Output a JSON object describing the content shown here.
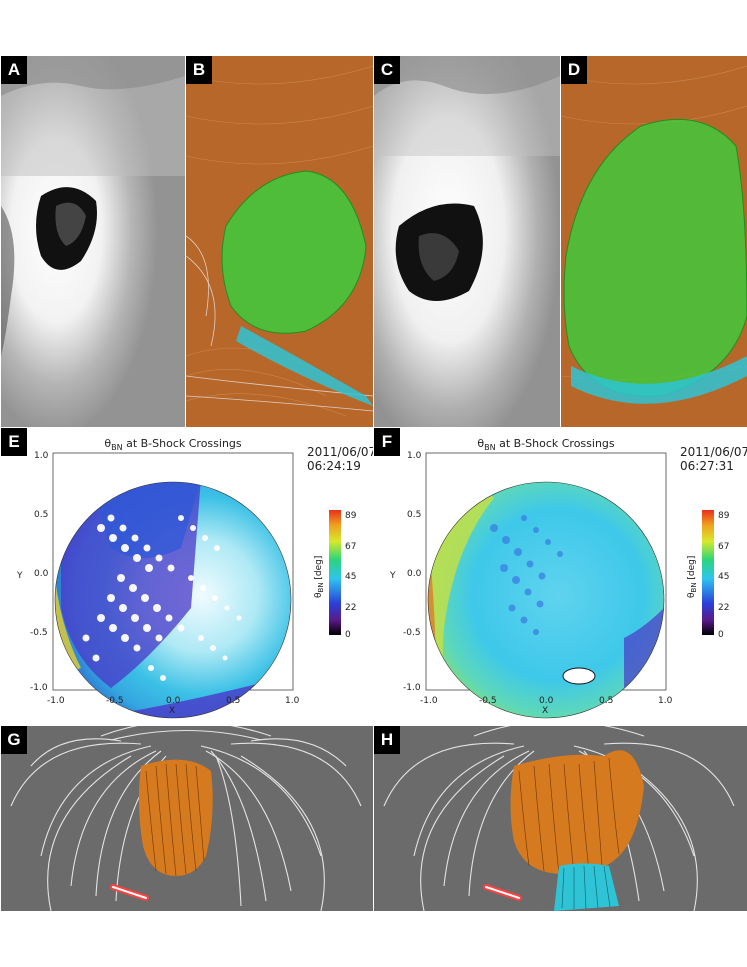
{
  "panels": {
    "A": {
      "label": "A"
    },
    "B": {
      "label": "B"
    },
    "C": {
      "label": "C"
    },
    "D": {
      "label": "D"
    },
    "E": {
      "label": "E",
      "title": "θ",
      "title_sub": "BN",
      "title_rest": " at B-Shock Crossings",
      "date": "2011/06/07",
      "time": "06:24:19"
    },
    "F": {
      "label": "F",
      "title": "θ",
      "title_sub": "BN",
      "title_rest": " at B-Shock Crossings",
      "date": "2011/06/07",
      "time": "06:27:31"
    },
    "G": {
      "label": "G"
    },
    "H": {
      "label": "H"
    }
  },
  "axes": {
    "xlabel": "X",
    "ylabel": "Y",
    "xticks": [
      "-1.0",
      "-0.5",
      "0.0",
      "0.5",
      "1.0"
    ],
    "yticks": [
      "1.0",
      "0.5",
      "0.0",
      "-0.5",
      "-1.0"
    ]
  },
  "colorbar": {
    "label": "θ",
    "label_sub": "BN",
    "label_rest": " [deg]",
    "ticks": [
      "89",
      "67",
      "45",
      "22",
      "0"
    ]
  },
  "colors": {
    "aia_bg": "#9a9a9a",
    "model_bg": "#b8672a",
    "shock_green": "#3dcc3d",
    "cyan": "#2ec4d6",
    "fieldline_orange": "#d67a1f",
    "gray_bg": "#6b6b6b"
  }
}
